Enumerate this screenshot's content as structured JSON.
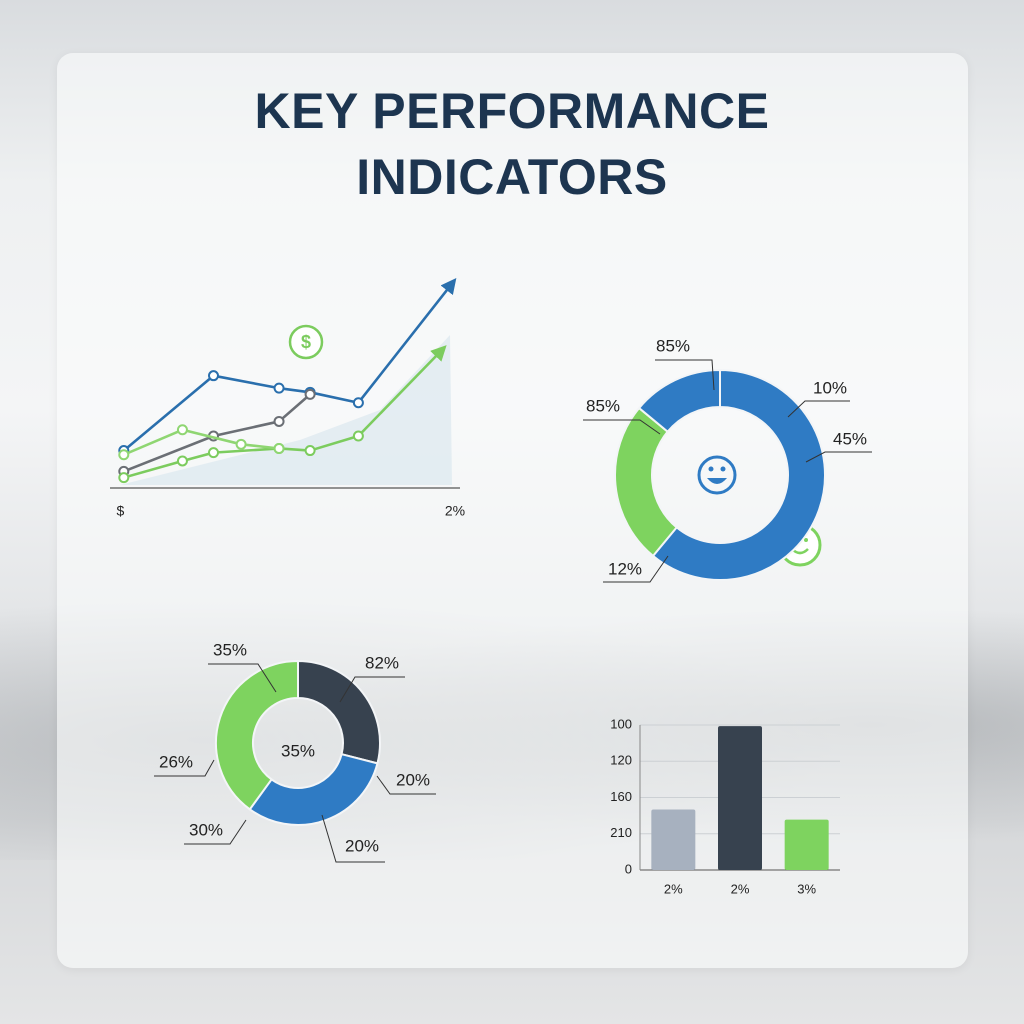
{
  "title": "KEY PERFORMANCE INDICATORS",
  "chart_data": [
    {
      "type": "line",
      "xlim": [
        0,
        10
      ],
      "ylim": [
        0,
        10
      ],
      "xticks": [
        {
          "value": 0.3,
          "label": "$"
        },
        {
          "value": 10,
          "label": "2%"
        }
      ],
      "series": [
        {
          "color": "#2a6fad",
          "arrow": true,
          "x": [
            0.4,
            3,
            4.9,
            5.8,
            7.2,
            9.9
          ],
          "values": [
            1.8,
            5.4,
            4.8,
            4.6,
            4.1,
            9.8
          ]
        },
        {
          "color": "#6b6f75",
          "arrow": false,
          "x": [
            0.4,
            3,
            4.9,
            5.8
          ],
          "values": [
            0.8,
            2.5,
            3.2,
            4.5
          ]
        },
        {
          "color": "#7ccc5e",
          "arrow": true,
          "x": [
            0.4,
            2.1,
            3,
            4.9,
            5.8,
            7.2,
            9.6
          ],
          "values": [
            0.5,
            1.3,
            1.7,
            1.9,
            1.8,
            2.5,
            6.6
          ]
        },
        {
          "color": "#8fd672",
          "arrow": false,
          "x": [
            0.4,
            2.1,
            3.8,
            4.9
          ],
          "values": [
            1.6,
            2.8,
            2.1,
            1.9
          ]
        }
      ]
    },
    {
      "type": "donut",
      "values": [
        61,
        25,
        14
      ],
      "colors": [
        "#2f7bc4",
        "#7ed35f",
        "#2f7bc4"
      ],
      "annotations": [
        "85%",
        "85%",
        "10%",
        "45%",
        "12%"
      ]
    },
    {
      "type": "donut",
      "values": [
        29,
        31,
        40
      ],
      "colors": [
        "#37424f",
        "#2f7bc4",
        "#7ed35f"
      ],
      "center_label": "35%",
      "annotations": [
        "35%",
        "82%",
        "26%",
        "20%",
        "30%",
        "20%"
      ]
    },
    {
      "type": "bar",
      "categories": [
        "2%",
        "2%",
        "3%"
      ],
      "values": [
        1.67,
        3.97,
        1.39
      ],
      "colors": [
        "#a7b1bf",
        "#37424f",
        "#7ed35f"
      ],
      "ylim": [
        0,
        4
      ],
      "yticks": [
        {
          "value": 4,
          "label": "100"
        },
        {
          "value": 3,
          "label": "120"
        },
        {
          "value": 2,
          "label": "160"
        },
        {
          "value": 1,
          "label": "210"
        },
        0
      ],
      "grid": true
    }
  ]
}
